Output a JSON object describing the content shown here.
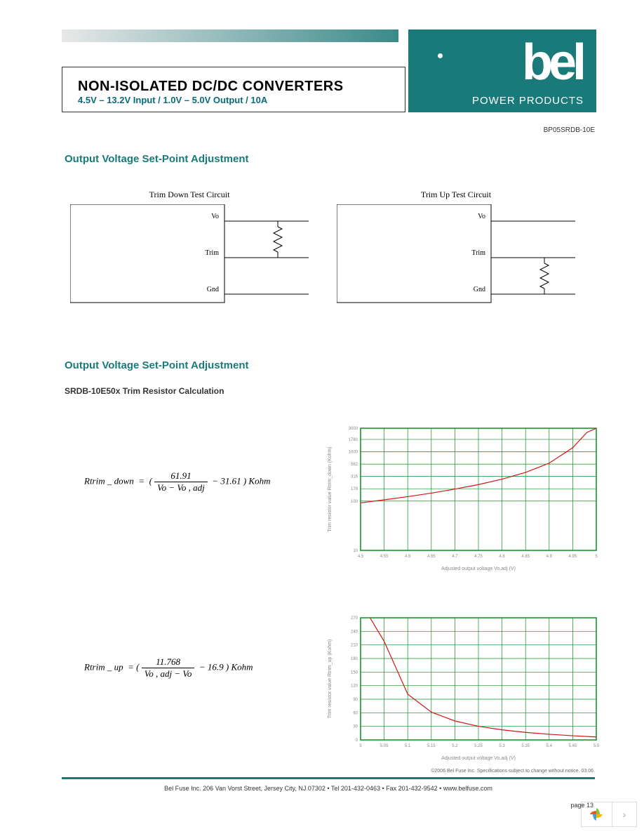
{
  "header": {
    "title": "NON-ISOLATED DC/DC CONVERTERS",
    "subtitle": "4.5V – 13.2V Input / 1.0V – 5.0V Output / 10A",
    "brand": "bel",
    "brand_sub": "POWER PRODUCTS",
    "part_number": "BP05SRDB-10E"
  },
  "sections": {
    "s1": "Output Voltage Set-Point Adjustment",
    "s2": "Output Voltage Set-Point Adjustment",
    "sub": "SRDB-10E50x Trim Resistor Calculation"
  },
  "circuits": {
    "c1": {
      "title": "Trim Down Test Circuit",
      "pins": [
        "Vo",
        "Trim",
        "Gnd"
      ],
      "resistor_between": [
        0,
        1
      ]
    },
    "c2": {
      "title": "Trim Up Test Circuit",
      "pins": [
        "Vo",
        "Trim",
        "Gnd"
      ],
      "resistor_between": [
        1,
        2
      ]
    }
  },
  "formulas": {
    "f1": {
      "lhs": "Rtrim _ down",
      "numerator": "61.91",
      "denom": "Vo − Vo , adj",
      "offset": "− 31.61",
      "unit": "Kohm"
    },
    "f2": {
      "lhs": "Rtrim _ up",
      "numerator": "11.768",
      "denom": "Vo , adj − Vo",
      "offset": "− 16.9",
      "unit": "Kohm"
    }
  },
  "chart1": {
    "type": "line",
    "xlabel": "Adjusted output voltage Vo,adj (V)",
    "ylabel": "Trim resistor value Rtrim_down (Kohm)",
    "xlim": [
      4.5,
      5.0
    ],
    "xtick_step": 0.05,
    "ylim": [
      10,
      3000
    ],
    "yticks": [
      10,
      100,
      178,
      316,
      562,
      1000,
      1780,
      3000
    ],
    "ytick_labels": [
      "10",
      "100",
      "178",
      "316",
      "562",
      "1000",
      "1780",
      "3000"
    ],
    "yscale": "log",
    "line_color": "#d01616",
    "grid_color": "#0a9020",
    "border_color": "#0a9020",
    "background_color": "#ffffff",
    "label_fontsize": 7,
    "tick_fontsize": 6,
    "data_x": [
      4.5,
      4.55,
      4.6,
      4.65,
      4.7,
      4.75,
      4.8,
      4.85,
      4.9,
      4.95,
      4.98,
      5.0
    ],
    "data_y": [
      92,
      106,
      123,
      145,
      175,
      216,
      278,
      381,
      587,
      1207,
      2464,
      3000
    ]
  },
  "chart2": {
    "type": "line",
    "xlabel": "Adjusted output voltage Vo,adj (V)",
    "ylabel": "Trim resistor value Rtrim_up (Kohm)",
    "xlim": [
      5.0,
      5.5
    ],
    "xtick_step": 0.05,
    "ylim": [
      0,
      270
    ],
    "ytick_step": 30,
    "yscale": "linear",
    "line_color": "#d01616",
    "grid_color": "#0a9020",
    "border_color": "#0a9020",
    "background_color": "#ffffff",
    "label_fontsize": 7,
    "tick_fontsize": 6,
    "data_x": [
      5.02,
      5.05,
      5.1,
      5.15,
      5.2,
      5.25,
      5.3,
      5.35,
      5.4,
      5.45,
      5.5
    ],
    "data_y": [
      270,
      218,
      101,
      61.5,
      41.9,
      30.2,
      22.3,
      16.7,
      12.5,
      9.25,
      6.64
    ]
  },
  "footer": {
    "copyright": "©2006 Bel Fuse Inc.   Specifications subject to change without notice.  03.06",
    "address": "Bel Fuse Inc.  206 Van Vorst Street, Jersey City, NJ 07302 • Tel 201-432-0463 • Fax 201-432-9542 • www.belfuse.com",
    "page": "page 13"
  },
  "colors": {
    "teal": "#1a7a7a",
    "grid_green": "#0a9020",
    "curve_red": "#d01616"
  }
}
